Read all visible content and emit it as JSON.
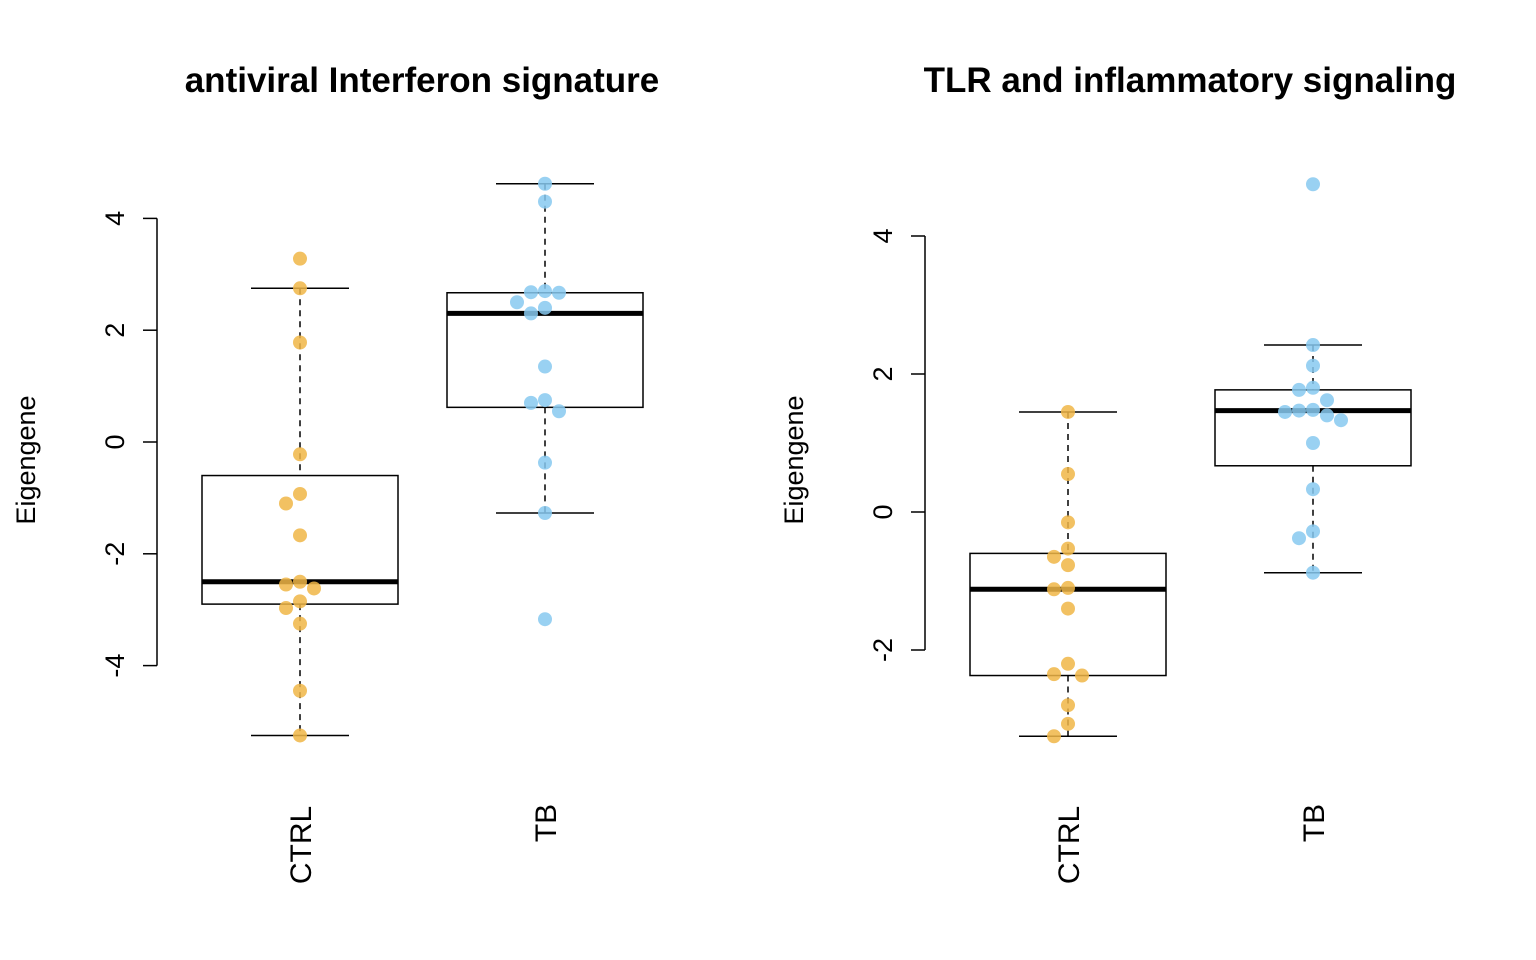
{
  "chart_data": [
    {
      "type": "box",
      "title": "antiviral Interferon signature",
      "ylabel": "Eigengene",
      "yticks": [
        "4",
        "2",
        "0",
        "-2",
        "-4"
      ],
      "ylim": [
        -5.6,
        5.1
      ],
      "categories": [
        "CTRL",
        "TB"
      ],
      "boxes": [
        {
          "group": "CTRL",
          "whisker_low": -5.25,
          "q1": -2.9,
          "median": -2.5,
          "q3": -0.6,
          "whisker_high": 2.75,
          "color": "#F0B646",
          "points": [
            3.28,
            2.75,
            1.78,
            -0.22,
            -0.93,
            -1.1,
            -1.67,
            -2.5,
            -2.55,
            -2.62,
            -2.85,
            -2.97,
            -3.25,
            -4.45,
            -5.25
          ]
        },
        {
          "group": "TB",
          "whisker_low": -1.27,
          "q1": 0.62,
          "median": 2.3,
          "q3": 2.67,
          "whisker_high": 4.62,
          "color": "#87C9F0",
          "points": [
            4.62,
            4.3,
            2.7,
            2.68,
            2.67,
            2.5,
            2.4,
            2.3,
            1.35,
            0.75,
            0.7,
            0.55,
            -0.37,
            -1.27,
            -3.17
          ]
        }
      ]
    },
    {
      "type": "box",
      "title": "TLR and inflammatory signaling",
      "ylabel": "Eigengene",
      "yticks": [
        "4",
        "2",
        "0",
        "-2"
      ],
      "ylim": [
        -3.55,
        5.3
      ],
      "categories": [
        "CTRL",
        "TB"
      ],
      "boxes": [
        {
          "group": "CTRL",
          "whisker_low": -3.25,
          "q1": -2.37,
          "median": -1.12,
          "q3": -0.6,
          "whisker_high": 1.45,
          "color": "#F0B646",
          "points": [
            1.45,
            0.55,
            -0.15,
            -0.53,
            -0.65,
            -0.77,
            -1.1,
            -1.12,
            -1.4,
            -2.2,
            -2.35,
            -2.37,
            -2.8,
            -3.07,
            -3.25
          ]
        },
        {
          "group": "TB",
          "whisker_low": -0.88,
          "q1": 0.67,
          "median": 1.47,
          "q3": 1.77,
          "whisker_high": 2.42,
          "color": "#87C9F0",
          "points": [
            4.75,
            2.42,
            2.12,
            1.8,
            1.77,
            1.62,
            1.48,
            1.47,
            1.45,
            1.4,
            1.33,
            1.0,
            0.33,
            -0.28,
            -0.38,
            -0.88
          ]
        }
      ]
    }
  ]
}
